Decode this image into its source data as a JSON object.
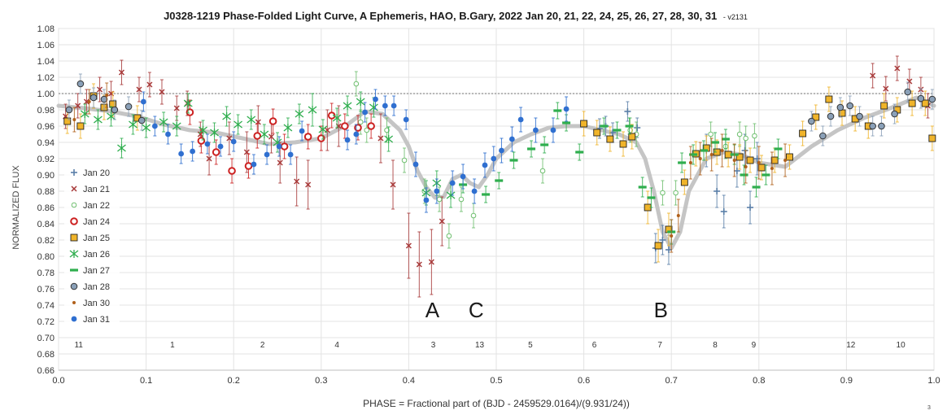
{
  "chart_data": {
    "type": "scatter",
    "title": "J0328-1219 Phase-Folded Light Curve, A Ephemeris, HAO, B.Gary, 2022 Jan 20, 21, 22, 24, 25, 26, 27, 28, 30, 31",
    "version": "- v2131",
    "xlabel": "PHASE = Fractional part of (BJD - 2459529.0164)/(9.931/24))",
    "ylabel": "NORMALIZED FLUX",
    "xlim": [
      0.0,
      1.0
    ],
    "ylim": [
      0.66,
      1.08
    ],
    "x_ticks": [
      "0.0",
      "0.1",
      "0.2",
      "0.3",
      "0.4",
      "0.5",
      "0.6",
      "0.7",
      "0.8",
      "0.9",
      "1.0"
    ],
    "y_ticks": [
      "0.66",
      "0.68",
      "0.70",
      "0.72",
      "0.74",
      "0.76",
      "0.78",
      "0.80",
      "0.82",
      "0.84",
      "0.86",
      "0.88",
      "0.90",
      "0.92",
      "0.94",
      "0.96",
      "0.98",
      "1.00",
      "1.02",
      "1.04",
      "1.06",
      "1.08"
    ],
    "grid": true,
    "legend_position": "left",
    "reference_line_y": 1.0,
    "dip_labels": [
      {
        "text": "A",
        "x": 0.427,
        "y": 0.735
      },
      {
        "text": "C",
        "x": 0.477,
        "y": 0.735
      },
      {
        "text": "B",
        "x": 0.688,
        "y": 0.735
      }
    ],
    "segment_labels": [
      {
        "text": "11",
        "x": 0.023
      },
      {
        "text": "1",
        "x": 0.13
      },
      {
        "text": "2",
        "x": 0.233
      },
      {
        "text": "4",
        "x": 0.318
      },
      {
        "text": "3",
        "x": 0.428
      },
      {
        "text": "13",
        "x": 0.481
      },
      {
        "text": "5",
        "x": 0.539
      },
      {
        "text": "6",
        "x": 0.612
      },
      {
        "text": "7",
        "x": 0.687
      },
      {
        "text": "8",
        "x": 0.75
      },
      {
        "text": "9",
        "x": 0.794
      },
      {
        "text": "12",
        "x": 0.905
      },
      {
        "text": "10",
        "x": 0.962
      }
    ],
    "footnote": "3",
    "model_curve": {
      "color": "#bfbfbf",
      "x": [
        0.0,
        0.03,
        0.06,
        0.09,
        0.12,
        0.15,
        0.18,
        0.21,
        0.24,
        0.27,
        0.3,
        0.33,
        0.35,
        0.37,
        0.39,
        0.4,
        0.41,
        0.42,
        0.43,
        0.44,
        0.45,
        0.46,
        0.47,
        0.48,
        0.49,
        0.5,
        0.52,
        0.54,
        0.56,
        0.58,
        0.6,
        0.62,
        0.64,
        0.66,
        0.67,
        0.68,
        0.69,
        0.7,
        0.71,
        0.72,
        0.74,
        0.76,
        0.78,
        0.8,
        0.83,
        0.86,
        0.89,
        0.92,
        0.95,
        0.98,
        1.0
      ],
      "y": [
        0.985,
        0.982,
        0.978,
        0.972,
        0.962,
        0.955,
        0.952,
        0.945,
        0.938,
        0.94,
        0.945,
        0.962,
        0.978,
        0.975,
        0.955,
        0.935,
        0.905,
        0.885,
        0.872,
        0.873,
        0.895,
        0.9,
        0.89,
        0.885,
        0.9,
        0.92,
        0.94,
        0.95,
        0.958,
        0.96,
        0.96,
        0.955,
        0.95,
        0.94,
        0.92,
        0.88,
        0.83,
        0.81,
        0.83,
        0.88,
        0.92,
        0.928,
        0.925,
        0.915,
        0.91,
        0.935,
        0.955,
        0.97,
        0.982,
        0.995,
        0.985
      ]
    },
    "series": [
      {
        "name": "Jan 20",
        "marker": "plus",
        "color": "#5a7fa8",
        "x": [
          0.618,
          0.625,
          0.633,
          0.65,
          0.661,
          0.682,
          0.69,
          0.697,
          0.74,
          0.752,
          0.76,
          0.775,
          0.784,
          0.79,
          0.798
        ],
        "y": [
          0.957,
          0.96,
          0.952,
          0.978,
          0.958,
          0.81,
          0.82,
          0.808,
          0.93,
          0.88,
          0.855,
          0.905,
          0.93,
          0.86,
          0.92
        ],
        "err": [
          0.012,
          0.012,
          0.012,
          0.012,
          0.012,
          0.018,
          0.018,
          0.018,
          0.02,
          0.02,
          0.02,
          0.02,
          0.02,
          0.02,
          0.02
        ]
      },
      {
        "name": "Jan 21",
        "marker": "x",
        "color": "#a83a3a",
        "x": [
          0.008,
          0.022,
          0.032,
          0.047,
          0.06,
          0.072,
          0.092,
          0.104,
          0.118,
          0.135,
          0.147,
          0.162,
          0.172,
          0.195,
          0.215,
          0.228,
          0.243,
          0.253,
          0.272,
          0.285,
          0.307,
          0.32,
          0.368,
          0.382,
          0.4,
          0.412,
          0.426,
          0.438,
          0.93,
          0.945,
          0.958,
          0.972,
          0.985,
          0.993
        ],
        "y": [
          0.972,
          0.985,
          0.99,
          1.005,
          1.0,
          1.026,
          1.005,
          1.011,
          1.002,
          0.982,
          0.988,
          0.95,
          0.92,
          0.945,
          0.928,
          0.965,
          0.947,
          0.915,
          0.892,
          0.888,
          0.955,
          0.96,
          0.945,
          0.888,
          0.813,
          0.79,
          0.793,
          0.843,
          1.022,
          1.006,
          1.031,
          1.015,
          1.005,
          0.985
        ],
        "err": [
          0.015,
          0.015,
          0.015,
          0.015,
          0.015,
          0.015,
          0.015,
          0.015,
          0.015,
          0.015,
          0.015,
          0.015,
          0.02,
          0.02,
          0.025,
          0.02,
          0.02,
          0.025,
          0.03,
          0.03,
          0.025,
          0.025,
          0.03,
          0.03,
          0.04,
          0.04,
          0.04,
          0.03,
          0.015,
          0.015,
          0.015,
          0.015,
          0.015,
          0.015
        ]
      },
      {
        "name": "Jan 22",
        "marker": "circle-open",
        "color": "#6fbf6f",
        "x": [
          0.34,
          0.345,
          0.352,
          0.375,
          0.395,
          0.418,
          0.435,
          0.446,
          0.46,
          0.474,
          0.553,
          0.653,
          0.66,
          0.69,
          0.705,
          0.745,
          0.762,
          0.778,
          0.785,
          0.795
        ],
        "y": [
          1.012,
          0.965,
          0.955,
          0.955,
          0.918,
          0.88,
          0.87,
          0.825,
          0.87,
          0.85,
          0.905,
          0.955,
          0.95,
          0.878,
          0.878,
          0.95,
          0.935,
          0.95,
          0.945,
          0.948
        ],
        "err": [
          0.015,
          0.015,
          0.015,
          0.015,
          0.015,
          0.015,
          0.015,
          0.015,
          0.015,
          0.015,
          0.015,
          0.015,
          0.015,
          0.015,
          0.015,
          0.015,
          0.015,
          0.015,
          0.015,
          0.015
        ]
      },
      {
        "name": "Jan 24",
        "marker": "circle-red",
        "color": "#cc2020",
        "x": [
          0.15,
          0.163,
          0.18,
          0.198,
          0.217,
          0.227,
          0.245,
          0.258,
          0.285,
          0.3,
          0.312,
          0.327,
          0.342,
          0.357
        ],
        "y": [
          0.977,
          0.942,
          0.928,
          0.905,
          0.911,
          0.948,
          0.966,
          0.935,
          0.947,
          0.945,
          0.973,
          0.96,
          0.958,
          0.96
        ],
        "err": [
          0.015,
          0.015,
          0.015,
          0.015,
          0.015,
          0.015,
          0.015,
          0.015,
          0.015,
          0.015,
          0.015,
          0.015,
          0.015,
          0.015
        ]
      },
      {
        "name": "Jan 25",
        "marker": "square",
        "color": "#f0b42a",
        "x": [
          0.01,
          0.025,
          0.04,
          0.052,
          0.062,
          0.09,
          0.6,
          0.615,
          0.63,
          0.645,
          0.655,
          0.673,
          0.685,
          0.697,
          0.715,
          0.728,
          0.74,
          0.752,
          0.765,
          0.778,
          0.79,
          0.803,
          0.818,
          0.835,
          0.85,
          0.865,
          0.88,
          0.895,
          0.91,
          0.925,
          0.943,
          0.958,
          0.975,
          0.99,
          0.998
        ],
        "y": [
          0.966,
          0.96,
          0.997,
          0.983,
          0.987,
          0.97,
          0.963,
          0.952,
          0.944,
          0.938,
          0.947,
          0.86,
          0.813,
          0.833,
          0.891,
          0.926,
          0.933,
          0.928,
          0.925,
          0.922,
          0.918,
          0.909,
          0.918,
          0.922,
          0.951,
          0.971,
          0.993,
          0.976,
          0.969,
          0.96,
          0.985,
          0.98,
          0.988,
          0.988,
          0.945
        ],
        "err": [
          0.015,
          0.015,
          0.015,
          0.015,
          0.015,
          0.015,
          0.015,
          0.015,
          0.015,
          0.015,
          0.015,
          0.02,
          0.02,
          0.02,
          0.015,
          0.015,
          0.015,
          0.015,
          0.015,
          0.015,
          0.015,
          0.015,
          0.015,
          0.015,
          0.015,
          0.015,
          0.015,
          0.015,
          0.015,
          0.015,
          0.015,
          0.015,
          0.015,
          0.015,
          0.015
        ]
      },
      {
        "name": "Jan 26",
        "marker": "asterisk",
        "color": "#2fae4e",
        "x": [
          0.03,
          0.045,
          0.06,
          0.072,
          0.085,
          0.1,
          0.12,
          0.135,
          0.148,
          0.165,
          0.178,
          0.192,
          0.205,
          0.22,
          0.235,
          0.25,
          0.262,
          0.275,
          0.29,
          0.302,
          0.318,
          0.33,
          0.345,
          0.36,
          0.377,
          0.42,
          0.432,
          0.448
        ],
        "y": [
          0.975,
          0.968,
          0.972,
          0.933,
          0.962,
          0.958,
          0.965,
          0.96,
          0.988,
          0.955,
          0.952,
          0.972,
          0.962,
          0.968,
          0.95,
          0.94,
          0.958,
          0.975,
          0.98,
          0.956,
          0.97,
          0.985,
          0.99,
          0.983,
          0.944,
          0.878,
          0.89,
          0.875
        ],
        "err": [
          0.012,
          0.012,
          0.012,
          0.012,
          0.012,
          0.012,
          0.012,
          0.012,
          0.012,
          0.012,
          0.012,
          0.012,
          0.012,
          0.012,
          0.012,
          0.012,
          0.012,
          0.012,
          0.02,
          0.012,
          0.012,
          0.012,
          0.012,
          0.012,
          0.015,
          0.015,
          0.015,
          0.015
        ]
      },
      {
        "name": "Jan 27",
        "marker": "dash",
        "color": "#2fae4e",
        "x": [
          0.462,
          0.488,
          0.503,
          0.52,
          0.54,
          0.555,
          0.57,
          0.58,
          0.595,
          0.623,
          0.638,
          0.652,
          0.667,
          0.677,
          0.7,
          0.712,
          0.725,
          0.737,
          0.75,
          0.762,
          0.772,
          0.783,
          0.797,
          0.808,
          0.822
        ],
        "y": [
          0.888,
          0.876,
          0.893,
          0.918,
          0.932,
          0.937,
          0.979,
          0.964,
          0.928,
          0.96,
          0.955,
          0.96,
          0.885,
          0.872,
          0.83,
          0.915,
          0.925,
          0.93,
          0.94,
          0.944,
          0.925,
          0.9,
          0.885,
          0.9,
          0.932
        ],
        "err": [
          0.01,
          0.01,
          0.01,
          0.01,
          0.01,
          0.01,
          0.01,
          0.01,
          0.01,
          0.01,
          0.01,
          0.01,
          0.012,
          0.012,
          0.015,
          0.012,
          0.012,
          0.012,
          0.012,
          0.012,
          0.012,
          0.012,
          0.012,
          0.012,
          0.012
        ]
      },
      {
        "name": "Jan 28",
        "marker": "circle-gray",
        "color": "#8aa0b8",
        "x": [
          0.012,
          0.025,
          0.04,
          0.052,
          0.064,
          0.08,
          0.095,
          0.86,
          0.873,
          0.882,
          0.893,
          0.904,
          0.915,
          0.93,
          0.94,
          0.955,
          0.97,
          0.985,
          0.998
        ],
        "y": [
          0.98,
          1.012,
          0.995,
          0.993,
          0.98,
          0.984,
          0.967,
          0.966,
          0.948,
          0.972,
          0.983,
          0.985,
          0.972,
          0.96,
          0.96,
          0.975,
          1.002,
          0.994,
          0.993
        ],
        "err": [
          0.012,
          0.012,
          0.012,
          0.012,
          0.012,
          0.012,
          0.012,
          0.012,
          0.012,
          0.012,
          0.012,
          0.012,
          0.012,
          0.012,
          0.012,
          0.012,
          0.012,
          0.012,
          0.012
        ]
      },
      {
        "name": "Jan 30",
        "marker": "dot-small",
        "color": "#b0601a",
        "x": [
          0.018,
          0.035,
          0.055,
          0.7,
          0.708,
          0.722,
          0.733,
          0.746,
          0.758,
          0.772,
          0.785,
          0.8,
          0.815,
          0.83
        ],
        "y": [
          0.968,
          0.99,
          0.998,
          0.825,
          0.85,
          0.915,
          0.92,
          0.925,
          0.93,
          0.918,
          0.91,
          0.915,
          0.908,
          0.918
        ],
        "err": [
          0.015,
          0.015,
          0.015,
          0.02,
          0.02,
          0.02,
          0.02,
          0.02,
          0.02,
          0.02,
          0.02,
          0.02,
          0.02,
          0.02
        ]
      },
      {
        "name": "Jan 31",
        "marker": "dot-blue",
        "color": "#2f6fd0",
        "x": [
          0.097,
          0.11,
          0.125,
          0.14,
          0.153,
          0.17,
          0.185,
          0.2,
          0.223,
          0.238,
          0.252,
          0.265,
          0.278,
          0.33,
          0.34,
          0.35,
          0.362,
          0.373,
          0.383,
          0.397,
          0.408,
          0.42,
          0.432,
          0.45,
          0.462,
          0.475,
          0.487,
          0.497,
          0.506,
          0.518,
          0.528,
          0.545,
          0.565,
          0.58
        ],
        "y": [
          0.99,
          0.96,
          0.95,
          0.926,
          0.929,
          0.938,
          0.935,
          0.941,
          0.913,
          0.925,
          0.935,
          0.925,
          0.954,
          0.943,
          0.95,
          0.977,
          0.993,
          0.985,
          0.985,
          0.968,
          0.913,
          0.869,
          0.88,
          0.89,
          0.898,
          0.88,
          0.912,
          0.92,
          0.93,
          0.944,
          0.968,
          0.955,
          0.955,
          0.981
        ],
        "err": [
          0.012,
          0.012,
          0.012,
          0.012,
          0.012,
          0.012,
          0.012,
          0.012,
          0.012,
          0.012,
          0.012,
          0.012,
          0.012,
          0.012,
          0.012,
          0.012,
          0.012,
          0.012,
          0.012,
          0.012,
          0.015,
          0.015,
          0.015,
          0.015,
          0.015,
          0.015,
          0.015,
          0.015,
          0.015,
          0.015,
          0.015,
          0.015,
          0.015,
          0.015
        ]
      }
    ]
  }
}
